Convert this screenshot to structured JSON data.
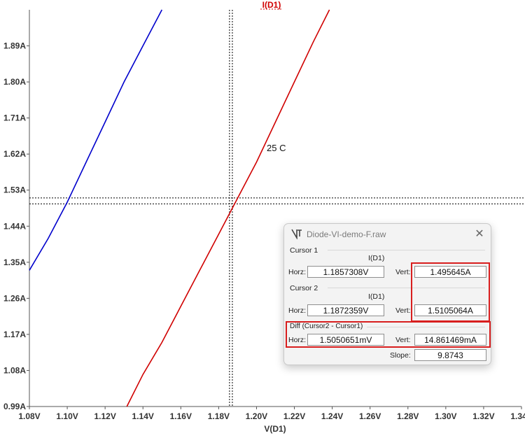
{
  "chart_data": {
    "type": "line",
    "title": "I(D1)",
    "xlabel": "V(D1)",
    "ylabel": "",
    "xlim": [
      1.08,
      1.34
    ],
    "ylim": [
      0.99,
      1.98
    ],
    "x_ticks": [
      "1.08V",
      "1.10V",
      "1.12V",
      "1.14V",
      "1.16V",
      "1.18V",
      "1.20V",
      "1.22V",
      "1.24V",
      "1.26V",
      "1.28V",
      "1.30V",
      "1.32V",
      "1.34V"
    ],
    "y_ticks": [
      "0.99A",
      "1.08A",
      "1.17A",
      "1.26A",
      "1.35A",
      "1.44A",
      "1.53A",
      "1.62A",
      "1.71A",
      "1.80A",
      "1.89A"
    ],
    "series": [
      {
        "color": "#0000cc",
        "points": [
          [
            1.08,
            1.33
          ],
          [
            1.09,
            1.41
          ],
          [
            1.1,
            1.5
          ],
          [
            1.11,
            1.6
          ],
          [
            1.12,
            1.7
          ],
          [
            1.13,
            1.8
          ],
          [
            1.14,
            1.89
          ],
          [
            1.15,
            1.98
          ]
        ]
      },
      {
        "color": "#d00000",
        "points": [
          [
            1.1315,
            0.99
          ],
          [
            1.14,
            1.07
          ],
          [
            1.15,
            1.15
          ],
          [
            1.16,
            1.24
          ],
          [
            1.17,
            1.33
          ],
          [
            1.18,
            1.42
          ],
          [
            1.19,
            1.51
          ],
          [
            1.2,
            1.6
          ],
          [
            1.21,
            1.7
          ],
          [
            1.22,
            1.8
          ],
          [
            1.23,
            1.9
          ],
          [
            1.2385,
            1.98
          ]
        ]
      }
    ],
    "cursor_lines": {
      "x": [
        1.1857308,
        1.1872359
      ],
      "y": [
        1.495645,
        1.5105064
      ]
    },
    "annotations": [
      "25 C"
    ],
    "grid": false
  },
  "cursor_window": {
    "title": "Diode-VI-demo-F.raw",
    "close_glyph": "✕",
    "cursor1": {
      "label": "Cursor 1",
      "trace": "I(D1)",
      "horz_label": "Horz:",
      "horz": "1.1857308V",
      "vert_label": "Vert:",
      "vert": "1.495645A"
    },
    "cursor2": {
      "label": "Cursor 2",
      "trace": "I(D1)",
      "horz_label": "Horz:",
      "horz": "1.1872359V",
      "vert_label": "Vert:",
      "vert": "1.5105064A"
    },
    "diff": {
      "label": "Diff (Cursor2 - Cursor1)",
      "horz_label": "Horz:",
      "horz": "1.5050651mV",
      "vert_label": "Vert:",
      "vert": "14.861469mA",
      "slope_label": "Slope:",
      "slope": "9.8743"
    },
    "highlight_color": "#d81e1e"
  }
}
